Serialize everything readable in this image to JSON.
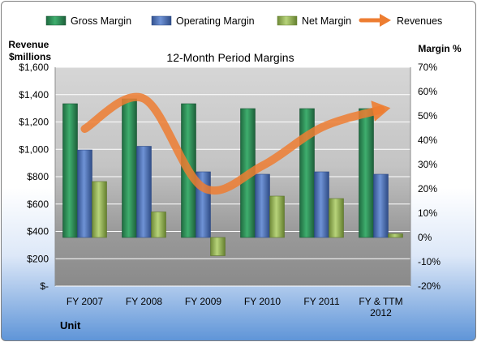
{
  "chart_data": {
    "type": "bar",
    "title": "12-Month Period Margins",
    "ylabel_left": "Revenue\n$millions",
    "ylabel_right": "Margin %",
    "xlabel": "Unit",
    "categories": [
      "FY 2007",
      "FY 2008",
      "FY 2009",
      "FY 2010",
      "FY 2011",
      "FY & TTM\n2012"
    ],
    "left_axis": {
      "range": [
        0,
        1600
      ],
      "ticks": [
        0,
        200,
        400,
        600,
        800,
        1000,
        1200,
        1400,
        1600
      ],
      "tick_labels": [
        "$-",
        "$200",
        "$400",
        "$600",
        "$800",
        "$1,000",
        "$1,200",
        "$1,400",
        "$1,600"
      ]
    },
    "right_axis": {
      "range": [
        -20,
        70
      ],
      "ticks": [
        -20,
        -10,
        0,
        10,
        20,
        30,
        40,
        50,
        60,
        70
      ],
      "tick_labels": [
        "-20%",
        "-10%",
        "0%",
        "10%",
        "20%",
        "30%",
        "40%",
        "50%",
        "60%",
        "70%"
      ]
    },
    "series": [
      {
        "name": "Gross Margin",
        "axis": "right",
        "type": "bar",
        "color": "#2e8b57",
        "values": [
          55,
          57,
          55,
          53,
          53,
          53
        ]
      },
      {
        "name": "Operating Margin",
        "axis": "right",
        "type": "bar",
        "color": "#4f72b8",
        "values": [
          36,
          37.5,
          27,
          26,
          27,
          26
        ]
      },
      {
        "name": "Net Margin",
        "axis": "right",
        "type": "bar",
        "color": "#9bbb59",
        "values": [
          23,
          10.5,
          -7.5,
          17,
          16,
          1.5
        ]
      },
      {
        "name": "Revenues",
        "axis": "left",
        "type": "line",
        "color": "#ed7d31",
        "values": [
          1150,
          1370,
          720,
          880,
          1160,
          1290
        ]
      }
    ],
    "legend": "top",
    "grid": "horizontal"
  }
}
